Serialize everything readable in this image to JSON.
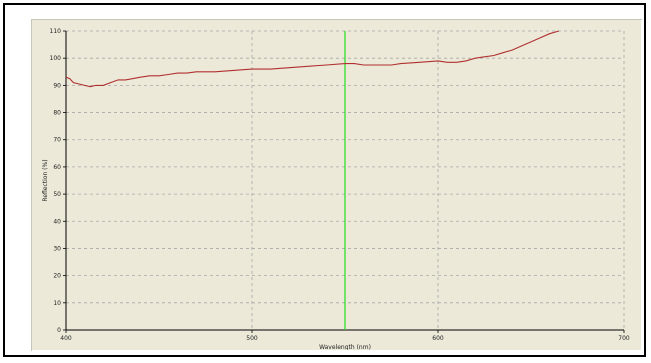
{
  "colors": {
    "panel": "#ece9d8",
    "grid": "#a8a8a8",
    "axis": "#000000",
    "spectrum": "#b03030",
    "marker": "#22dd22"
  },
  "chart_data": {
    "type": "line",
    "xlabel": "Wavelength (nm)",
    "ylabel": "Reflection (%)",
    "xlim": [
      400,
      700
    ],
    "ylim": [
      0,
      110
    ],
    "x_ticks": [
      400,
      500,
      600,
      700
    ],
    "y_ticks": [
      0,
      10,
      20,
      30,
      40,
      50,
      60,
      70,
      80,
      90,
      100,
      110
    ],
    "grid": true,
    "marker_line_x": 550,
    "series": [
      {
        "x": [
          400,
          402,
          404,
          407,
          410,
          413,
          416,
          420,
          424,
          428,
          432,
          436,
          440,
          445,
          450,
          455,
          460,
          465,
          470,
          480,
          490,
          500,
          510,
          520,
          530,
          540,
          550,
          555,
          560,
          565,
          570,
          575,
          580,
          590,
          600,
          605,
          610,
          615,
          620,
          625,
          630,
          635,
          640,
          645,
          650,
          655,
          660,
          665
        ],
        "y": [
          93,
          92.5,
          91,
          90.5,
          90,
          89.5,
          90,
          90,
          91,
          92,
          92,
          92.5,
          93,
          93.5,
          93.5,
          94,
          94.5,
          94.5,
          95,
          95,
          95.5,
          96,
          96,
          96.5,
          97,
          97.5,
          98,
          98,
          97.5,
          97.5,
          97.5,
          97.5,
          98,
          98.5,
          99,
          98.5,
          98.5,
          99,
          100,
          100.5,
          101,
          102,
          103,
          104.5,
          106,
          107.5,
          109,
          110
        ]
      }
    ]
  }
}
